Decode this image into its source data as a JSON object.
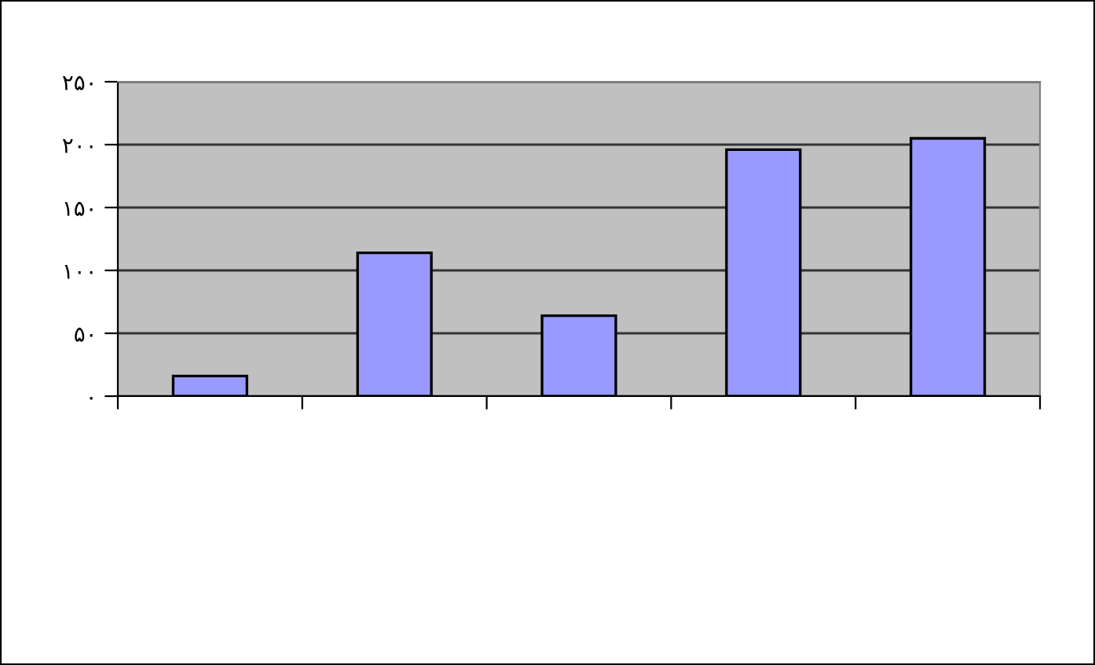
{
  "chart_data": {
    "type": "bar",
    "categories": [
      null,
      null,
      null,
      null,
      null
    ],
    "values": [
      16,
      114,
      64,
      196,
      205
    ],
    "color": "#9999ff",
    "ylim": [
      0,
      250
    ],
    "yticks": [
      {
        "value": 0,
        "label": "۰"
      },
      {
        "value": 50,
        "label": "۵۰"
      },
      {
        "value": 100,
        "label": "۱۰۰"
      },
      {
        "value": 150,
        "label": "۱۵۰"
      },
      {
        "value": 200,
        "label": "۲۰۰"
      },
      {
        "value": 250,
        "label": "۲۵۰"
      }
    ],
    "grid": "y"
  }
}
